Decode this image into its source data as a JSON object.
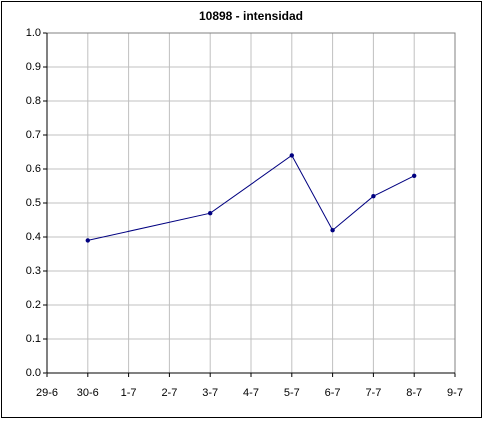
{
  "chart_data": {
    "type": "line",
    "title": "10898 - intensidad",
    "categories": [
      "29-6",
      "30-6",
      "1-7",
      "2-7",
      "3-7",
      "4-7",
      "5-7",
      "6-7",
      "7-7",
      "8-7",
      "9-7"
    ],
    "series": [
      {
        "name": "intensidad",
        "color": "#000080",
        "x": [
          "30-6",
          "3-7",
          "5-7",
          "6-7",
          "7-7",
          "8-7"
        ],
        "values": [
          0.39,
          0.47,
          0.64,
          0.42,
          0.52,
          0.58
        ]
      }
    ],
    "ylim": [
      0,
      1
    ],
    "yticks": [
      {
        "value": 0,
        "label": "0.0"
      },
      0.1,
      0.2,
      0.3,
      0.4,
      0.5,
      0.6,
      0.7,
      0.8,
      0.9,
      {
        "value": 1,
        "label": "1.0"
      }
    ],
    "grid": true
  }
}
